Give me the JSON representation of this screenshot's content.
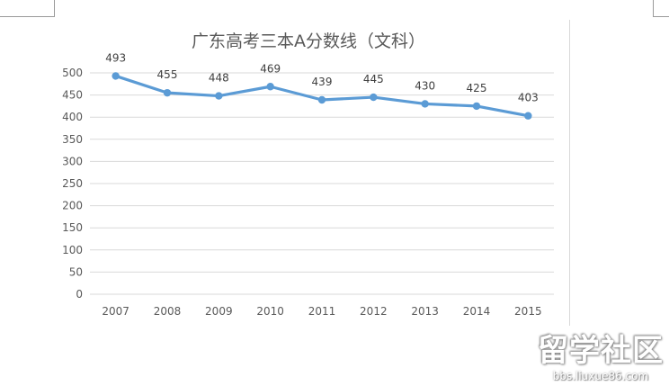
{
  "chart_data": {
    "type": "line",
    "title": "广东高考三本A分数线（文科）",
    "xlabel": "",
    "ylabel": "",
    "categories": [
      "2007",
      "2008",
      "2009",
      "2010",
      "2011",
      "2012",
      "2013",
      "2014",
      "2015"
    ],
    "series": [
      {
        "values": [
          493,
          455,
          448,
          469,
          439,
          445,
          430,
          425,
          403
        ],
        "color": "#5b9bd5"
      }
    ],
    "ylim": [
      0,
      500
    ],
    "yticks": [
      "0",
      "50",
      "100",
      "150",
      "200",
      "250",
      "300",
      "350",
      "400",
      "450",
      "500"
    ],
    "grid": true,
    "legend": "none",
    "data_labels": true
  },
  "watermark": {
    "logo": "留学社区",
    "url": "bbs.liuxue86.com"
  }
}
